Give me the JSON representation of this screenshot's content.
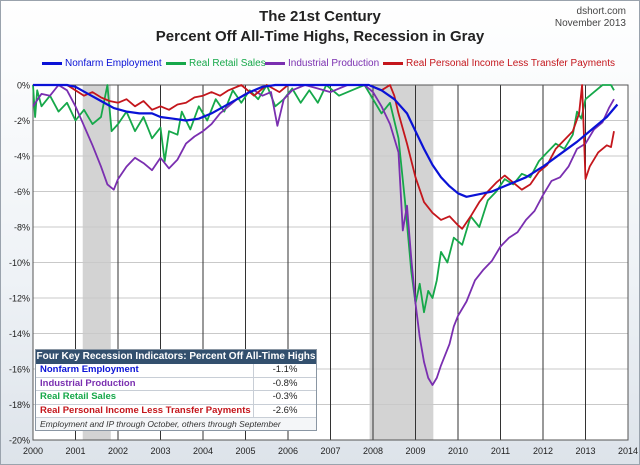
{
  "header": {
    "title": "The 21st Century",
    "subtitle": "Percent Off All-Time Highs, Recession in Gray",
    "credit_site": "dshort.com",
    "credit_date": "November 2013"
  },
  "colors": {
    "nonfarm": "#0a12d6",
    "retail": "#16a84a",
    "industrial": "#7a2fb0",
    "income": "#c4161c",
    "recession": "#d3d3d3",
    "grid": "#c9c9c9",
    "axis": "#000000"
  },
  "chart_data": {
    "type": "line",
    "title": "The 21st Century",
    "subtitle": "Percent Off All-Time Highs, Recession in Gray",
    "ylim": [
      -20,
      0
    ],
    "xlim": [
      2000,
      2014
    ],
    "y_ticks": [
      "0%",
      "-2%",
      "-4%",
      "-6%",
      "-8%",
      "-10%",
      "-12%",
      "-14%",
      "-16%",
      "-18%",
      "-20%"
    ],
    "y_tick_values": [
      0,
      -2,
      -4,
      -6,
      -8,
      -10,
      -12,
      -14,
      -16,
      -18,
      -20
    ],
    "x_ticks": [
      "2000",
      "2001",
      "2002",
      "2003",
      "2004",
      "2005",
      "2006",
      "2007",
      "2008",
      "2009",
      "2010",
      "2011",
      "2012",
      "2013",
      "2014"
    ],
    "x_tick_values": [
      2000,
      2001,
      2002,
      2003,
      2004,
      2005,
      2006,
      2007,
      2008,
      2009,
      2010,
      2011,
      2012,
      2013,
      2014
    ],
    "grid": true,
    "legend_position": "top",
    "recessions": [
      [
        2001.17,
        2001.83
      ],
      [
        2007.92,
        2009.42
      ]
    ],
    "series": [
      {
        "name": "Nonfarm Employment",
        "color": "#0a12d6",
        "points": [
          [
            2000,
            0
          ],
          [
            2000.3,
            0
          ],
          [
            2000.8,
            0
          ],
          [
            2001.0,
            -0.1
          ],
          [
            2001.3,
            -0.5
          ],
          [
            2001.6,
            -0.9
          ],
          [
            2001.9,
            -1.3
          ],
          [
            2002.2,
            -1.5
          ],
          [
            2002.5,
            -1.6
          ],
          [
            2002.8,
            -1.6
          ],
          [
            2003.0,
            -1.8
          ],
          [
            2003.3,
            -1.9
          ],
          [
            2003.6,
            -2.0
          ],
          [
            2003.9,
            -1.9
          ],
          [
            2004.2,
            -1.6
          ],
          [
            2004.5,
            -1.2
          ],
          [
            2004.8,
            -0.8
          ],
          [
            2005.1,
            -0.4
          ],
          [
            2005.4,
            -0.1
          ],
          [
            2005.7,
            0
          ],
          [
            2006.0,
            0
          ],
          [
            2007.0,
            0
          ],
          [
            2007.9,
            0
          ],
          [
            2008.2,
            -0.3
          ],
          [
            2008.5,
            -0.8
          ],
          [
            2008.8,
            -1.6
          ],
          [
            2009.0,
            -2.6
          ],
          [
            2009.2,
            -3.6
          ],
          [
            2009.4,
            -4.5
          ],
          [
            2009.6,
            -5.2
          ],
          [
            2009.8,
            -5.7
          ],
          [
            2010.0,
            -6.1
          ],
          [
            2010.2,
            -6.3
          ],
          [
            2010.4,
            -6.2
          ],
          [
            2010.6,
            -6.1
          ],
          [
            2010.8,
            -6.0
          ],
          [
            2011.0,
            -5.8
          ],
          [
            2011.3,
            -5.5
          ],
          [
            2011.6,
            -5.2
          ],
          [
            2012.0,
            -4.6
          ],
          [
            2012.4,
            -3.9
          ],
          [
            2012.8,
            -3.2
          ],
          [
            2013.2,
            -2.4
          ],
          [
            2013.5,
            -1.8
          ],
          [
            2013.75,
            -1.1
          ]
        ]
      },
      {
        "name": "Real Retail Sales",
        "color": "#16a84a",
        "points": [
          [
            2000,
            0
          ],
          [
            2000.05,
            -1.8
          ],
          [
            2000.1,
            -0.3
          ],
          [
            2000.2,
            -1.2
          ],
          [
            2000.4,
            -0.6
          ],
          [
            2000.6,
            -1.5
          ],
          [
            2000.8,
            -1.0
          ],
          [
            2001.0,
            -2.0
          ],
          [
            2001.2,
            -1.4
          ],
          [
            2001.4,
            -2.2
          ],
          [
            2001.6,
            -1.8
          ],
          [
            2001.75,
            0
          ],
          [
            2001.85,
            -2.6
          ],
          [
            2002.0,
            -2.2
          ],
          [
            2002.2,
            -1.5
          ],
          [
            2002.4,
            -2.6
          ],
          [
            2002.6,
            -1.8
          ],
          [
            2002.8,
            -3.0
          ],
          [
            2003.0,
            -2.4
          ],
          [
            2003.1,
            -4.3
          ],
          [
            2003.2,
            -2.6
          ],
          [
            2003.4,
            -2.8
          ],
          [
            2003.5,
            -1.5
          ],
          [
            2003.7,
            -2.5
          ],
          [
            2003.9,
            -1.2
          ],
          [
            2004.1,
            -2.0
          ],
          [
            2004.3,
            -0.8
          ],
          [
            2004.5,
            -1.5
          ],
          [
            2004.7,
            -0.3
          ],
          [
            2004.9,
            -1.0
          ],
          [
            2005.1,
            -0.3
          ],
          [
            2005.3,
            -0.8
          ],
          [
            2005.5,
            0
          ],
          [
            2005.7,
            -1.2
          ],
          [
            2005.9,
            -0.8
          ],
          [
            2006.1,
            -0.2
          ],
          [
            2006.3,
            -1.0
          ],
          [
            2006.5,
            -0.3
          ],
          [
            2006.7,
            -1.0
          ],
          [
            2006.9,
            0
          ],
          [
            2007.2,
            -0.6
          ],
          [
            2007.5,
            -0.3
          ],
          [
            2007.8,
            0
          ],
          [
            2008.0,
            -0.8
          ],
          [
            2008.2,
            -1.6
          ],
          [
            2008.4,
            -1.0
          ],
          [
            2008.6,
            -3.0
          ],
          [
            2008.75,
            -6.5
          ],
          [
            2008.9,
            -10.5
          ],
          [
            2009.0,
            -12.3
          ],
          [
            2009.1,
            -11.2
          ],
          [
            2009.2,
            -12.8
          ],
          [
            2009.3,
            -11.6
          ],
          [
            2009.4,
            -12.0
          ],
          [
            2009.5,
            -11.0
          ],
          [
            2009.6,
            -9.4
          ],
          [
            2009.75,
            -10.0
          ],
          [
            2009.9,
            -8.6
          ],
          [
            2010.1,
            -9.0
          ],
          [
            2010.3,
            -7.4
          ],
          [
            2010.5,
            -8.0
          ],
          [
            2010.7,
            -6.5
          ],
          [
            2010.9,
            -6.0
          ],
          [
            2011.1,
            -5.3
          ],
          [
            2011.3,
            -5.6
          ],
          [
            2011.5,
            -5.0
          ],
          [
            2011.7,
            -5.2
          ],
          [
            2011.9,
            -4.3
          ],
          [
            2012.1,
            -3.8
          ],
          [
            2012.3,
            -3.3
          ],
          [
            2012.5,
            -3.6
          ],
          [
            2012.7,
            -2.8
          ],
          [
            2012.8,
            -1.5
          ],
          [
            2012.9,
            -1.9
          ],
          [
            2013.0,
            -0.8
          ],
          [
            2013.2,
            -0.4
          ],
          [
            2013.4,
            0
          ],
          [
            2013.6,
            0
          ],
          [
            2013.67,
            -0.3
          ]
        ]
      },
      {
        "name": "Industrial Production",
        "color": "#7a2fb0",
        "points": [
          [
            2000,
            -1.2
          ],
          [
            2000.2,
            -0.5
          ],
          [
            2000.4,
            -0.6
          ],
          [
            2000.6,
            0
          ],
          [
            2000.8,
            -0.3
          ],
          [
            2001.0,
            -1.2
          ],
          [
            2001.2,
            -2.3
          ],
          [
            2001.4,
            -3.4
          ],
          [
            2001.6,
            -4.6
          ],
          [
            2001.75,
            -5.6
          ],
          [
            2001.9,
            -5.9
          ],
          [
            2002.0,
            -5.3
          ],
          [
            2002.2,
            -4.6
          ],
          [
            2002.4,
            -4.1
          ],
          [
            2002.6,
            -4.4
          ],
          [
            2002.8,
            -4.8
          ],
          [
            2003.0,
            -4.1
          ],
          [
            2003.2,
            -4.7
          ],
          [
            2003.4,
            -4.2
          ],
          [
            2003.6,
            -3.3
          ],
          [
            2003.8,
            -2.9
          ],
          [
            2004.0,
            -2.6
          ],
          [
            2004.2,
            -2.2
          ],
          [
            2004.4,
            -1.6
          ],
          [
            2004.6,
            -1.2
          ],
          [
            2004.8,
            -0.8
          ],
          [
            2005.0,
            -0.5
          ],
          [
            2005.2,
            -0.3
          ],
          [
            2005.4,
            -0.6
          ],
          [
            2005.6,
            -0.4
          ],
          [
            2005.75,
            -2.3
          ],
          [
            2005.9,
            -0.8
          ],
          [
            2006.1,
            -0.3
          ],
          [
            2006.4,
            0
          ],
          [
            2006.7,
            -0.2
          ],
          [
            2007.0,
            -0.4
          ],
          [
            2007.4,
            0
          ],
          [
            2007.8,
            0
          ],
          [
            2008.0,
            -0.4
          ],
          [
            2008.2,
            -1.2
          ],
          [
            2008.4,
            -2.2
          ],
          [
            2008.6,
            -3.8
          ],
          [
            2008.7,
            -8.2
          ],
          [
            2008.8,
            -6.8
          ],
          [
            2008.9,
            -9.8
          ],
          [
            2009.0,
            -12.3
          ],
          [
            2009.1,
            -14.2
          ],
          [
            2009.2,
            -15.6
          ],
          [
            2009.3,
            -16.5
          ],
          [
            2009.4,
            -16.9
          ],
          [
            2009.5,
            -16.5
          ],
          [
            2009.6,
            -15.8
          ],
          [
            2009.8,
            -14.6
          ],
          [
            2009.9,
            -13.6
          ],
          [
            2010.0,
            -13.0
          ],
          [
            2010.2,
            -12.2
          ],
          [
            2010.4,
            -11.0
          ],
          [
            2010.6,
            -10.4
          ],
          [
            2010.8,
            -9.9
          ],
          [
            2011.0,
            -9.1
          ],
          [
            2011.2,
            -8.6
          ],
          [
            2011.4,
            -8.3
          ],
          [
            2011.6,
            -7.6
          ],
          [
            2011.8,
            -7.1
          ],
          [
            2012.0,
            -6.2
          ],
          [
            2012.2,
            -5.4
          ],
          [
            2012.4,
            -5.2
          ],
          [
            2012.6,
            -4.6
          ],
          [
            2012.8,
            -3.6
          ],
          [
            2013.0,
            -3.3
          ],
          [
            2013.2,
            -2.5
          ],
          [
            2013.4,
            -2.1
          ],
          [
            2013.55,
            -1.3
          ],
          [
            2013.67,
            -0.8
          ]
        ]
      },
      {
        "name": "Real Personal Income Less Transfer Payments",
        "color": "#c4161c",
        "points": [
          [
            2000,
            0
          ],
          [
            2000.5,
            0
          ],
          [
            2000.8,
            0
          ],
          [
            2001.0,
            -0.3
          ],
          [
            2001.2,
            -0.6
          ],
          [
            2001.4,
            -0.4
          ],
          [
            2001.6,
            -0.7
          ],
          [
            2001.8,
            -0.9
          ],
          [
            2002.0,
            -1.0
          ],
          [
            2002.2,
            -0.8
          ],
          [
            2002.4,
            -1.2
          ],
          [
            2002.6,
            -0.9
          ],
          [
            2002.8,
            -1.4
          ],
          [
            2003.0,
            -1.2
          ],
          [
            2003.2,
            -1.4
          ],
          [
            2003.4,
            -1.1
          ],
          [
            2003.6,
            -1.0
          ],
          [
            2003.8,
            -0.7
          ],
          [
            2004.0,
            -0.6
          ],
          [
            2004.2,
            -0.4
          ],
          [
            2004.4,
            -0.6
          ],
          [
            2004.6,
            -0.3
          ],
          [
            2004.9,
            0
          ],
          [
            2005.2,
            -0.6
          ],
          [
            2005.5,
            0
          ],
          [
            2005.8,
            -0.4
          ],
          [
            2006.0,
            0
          ],
          [
            2006.5,
            0
          ],
          [
            2007.0,
            0
          ],
          [
            2007.5,
            0
          ],
          [
            2007.9,
            0
          ],
          [
            2008.2,
            -0.3
          ],
          [
            2008.4,
            0
          ],
          [
            2008.5,
            -0.6
          ],
          [
            2008.6,
            -1.6
          ],
          [
            2008.8,
            -3.3
          ],
          [
            2009.0,
            -5.2
          ],
          [
            2009.2,
            -6.6
          ],
          [
            2009.4,
            -7.2
          ],
          [
            2009.6,
            -7.6
          ],
          [
            2009.8,
            -7.4
          ],
          [
            2010.0,
            -7.9
          ],
          [
            2010.1,
            -8.1
          ],
          [
            2010.3,
            -7.4
          ],
          [
            2010.5,
            -6.6
          ],
          [
            2010.7,
            -6.0
          ],
          [
            2010.9,
            -5.5
          ],
          [
            2011.1,
            -5.1
          ],
          [
            2011.3,
            -5.5
          ],
          [
            2011.5,
            -5.9
          ],
          [
            2011.7,
            -5.6
          ],
          [
            2011.9,
            -4.9
          ],
          [
            2012.1,
            -4.5
          ],
          [
            2012.3,
            -3.6
          ],
          [
            2012.5,
            -3.1
          ],
          [
            2012.7,
            -2.6
          ],
          [
            2012.85,
            -1.6
          ],
          [
            2012.92,
            0
          ],
          [
            2013.0,
            -5.3
          ],
          [
            2013.1,
            -4.6
          ],
          [
            2013.3,
            -3.8
          ],
          [
            2013.5,
            -3.4
          ],
          [
            2013.6,
            -3.5
          ],
          [
            2013.67,
            -2.6
          ]
        ]
      }
    ]
  },
  "summary_table": {
    "title": "Four Key Recession Indicators: Percent Off All-Time Highs",
    "rows": [
      {
        "label": "Nonfarm Employment",
        "value": "-1.1%",
        "color": "#0a12d6"
      },
      {
        "label": "Industrial Production",
        "value": "-0.8%",
        "color": "#7a2fb0"
      },
      {
        "label": "Real Retail Sales",
        "value": "-0.3%",
        "color": "#16a84a"
      },
      {
        "label": "Real Personal Income Less Transfer Payments",
        "value": "-2.6%",
        "color": "#c4161c"
      }
    ],
    "footnote": "Employment and IP through October,  others through September"
  }
}
